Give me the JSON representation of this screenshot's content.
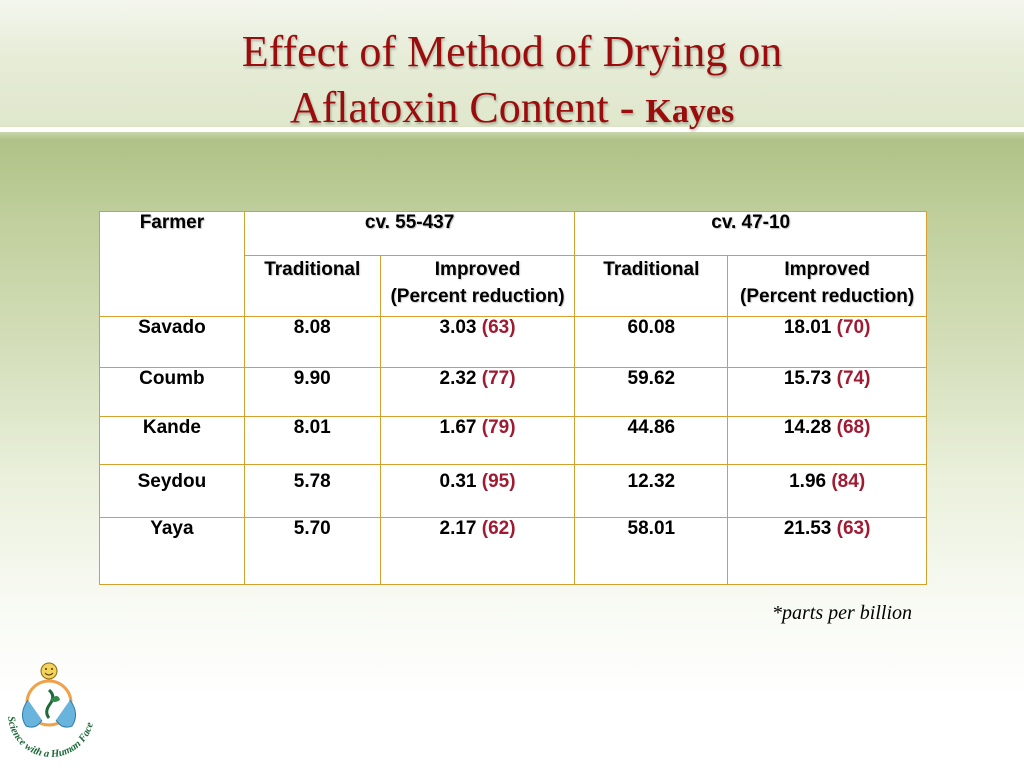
{
  "title": {
    "line1": "Effect  of  Method of   Drying on",
    "line2": "Aflatoxin  Content - ",
    "line2_small": "Kayes"
  },
  "table": {
    "farmer_header": "Farmer",
    "cultivars": [
      "cv. 55-437",
      "cv. 47-10"
    ],
    "subheaders": {
      "traditional": "Traditional",
      "improved": "Improved",
      "improved_note": "(Percent reduction)"
    },
    "rows": [
      {
        "farmer": "Savado",
        "c1_trad": "8.08",
        "c1_imp": "3.03",
        "c1_pct": "(63)",
        "c2_trad": "60.08",
        "c2_imp": "18.01",
        "c2_pct": "(70)"
      },
      {
        "farmer": "Coumb",
        "c1_trad": "9.90",
        "c1_imp": "2.32",
        "c1_pct": "(77)",
        "c2_trad": "59.62",
        "c2_imp": "15.73",
        "c2_pct": "(74)"
      },
      {
        "farmer": "Kande",
        "c1_trad": "8.01",
        "c1_imp": "1.67",
        "c1_pct": "(79)",
        "c2_trad": "44.86",
        "c2_imp": "14.28",
        "c2_pct": "(68)"
      },
      {
        "farmer": "Seydou",
        "c1_trad": "5.78",
        "c1_imp": "0.31",
        "c1_pct": "(95)",
        "c2_trad": "12.32",
        "c2_imp": "1.96",
        "c2_pct": "(84)"
      },
      {
        "farmer": "Yaya",
        "c1_trad": "5.70",
        "c1_imp": "2.17",
        "c1_pct": "(62)",
        "c2_trad": "58.01",
        "c2_imp": "21.53",
        "c2_pct": "(63)"
      }
    ]
  },
  "footnote": "*parts per billion",
  "logo": {
    "icon": "human-face-logo-icon",
    "text": "Science with a Human Face"
  },
  "colors": {
    "title": "#9b0d0d",
    "header_text": "#1d1fa0",
    "percent_text": "#a01a32",
    "table_border": "#d6a02e",
    "logo_green": "#1e6a3a"
  }
}
